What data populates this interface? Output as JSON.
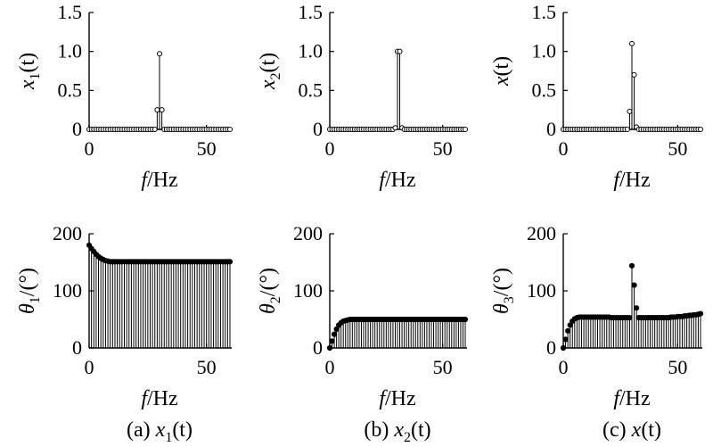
{
  "chart_data": [
    {
      "type": "stem",
      "panel": "top-left",
      "ylabel_main": "x",
      "ylabel_sub": "1",
      "ylabel_tail": "(t)",
      "xlabel_italic": "f",
      "xlabel_rest": "/Hz",
      "xlim": [
        0,
        60
      ],
      "ylim": [
        0,
        1.5
      ],
      "xticks": [
        0,
        50
      ],
      "yticks": [
        0,
        0.5,
        1.0,
        1.5
      ],
      "ytick_labels": [
        "0",
        "0.5",
        "1.0",
        "1.5"
      ],
      "marker": "open",
      "x": [
        0,
        1,
        2,
        3,
        4,
        5,
        6,
        7,
        8,
        9,
        10,
        11,
        12,
        13,
        14,
        15,
        16,
        17,
        18,
        19,
        20,
        21,
        22,
        23,
        24,
        25,
        26,
        27,
        28,
        29,
        30,
        31,
        32,
        33,
        34,
        35,
        36,
        37,
        38,
        39,
        40,
        41,
        42,
        43,
        44,
        45,
        46,
        47,
        48,
        49,
        50,
        51,
        52,
        53,
        54,
        55,
        56,
        57,
        58,
        59,
        60
      ],
      "values": [
        0,
        0,
        0,
        0,
        0,
        0,
        0,
        0,
        0,
        0,
        0,
        0,
        0,
        0,
        0,
        0,
        0,
        0,
        0,
        0,
        0,
        0,
        0,
        0,
        0,
        0,
        0,
        0,
        0,
        0.25,
        0.97,
        0.25,
        0,
        0,
        0,
        0,
        0,
        0,
        0,
        0,
        0,
        0,
        0,
        0,
        0,
        0,
        0,
        0,
        0,
        0,
        0,
        0,
        0,
        0,
        0,
        0,
        0,
        0,
        0,
        0,
        0
      ]
    },
    {
      "type": "stem",
      "panel": "top-middle",
      "ylabel_main": "x",
      "ylabel_sub": "2",
      "ylabel_tail": "(t)",
      "xlabel_italic": "f",
      "xlabel_rest": "/Hz",
      "xlim": [
        0,
        60
      ],
      "ylim": [
        0,
        1.5
      ],
      "xticks": [
        0,
        50
      ],
      "yticks": [
        0,
        0.5,
        1.0,
        1.5
      ],
      "ytick_labels": [
        "0",
        "0.5",
        "1.0",
        "1.5"
      ],
      "marker": "open",
      "x": [
        0,
        1,
        2,
        3,
        4,
        5,
        6,
        7,
        8,
        9,
        10,
        11,
        12,
        13,
        14,
        15,
        16,
        17,
        18,
        19,
        20,
        21,
        22,
        23,
        24,
        25,
        26,
        27,
        28,
        29,
        30,
        31,
        32,
        33,
        34,
        35,
        36,
        37,
        38,
        39,
        40,
        41,
        42,
        43,
        44,
        45,
        46,
        47,
        48,
        49,
        50,
        51,
        52,
        53,
        54,
        55,
        56,
        57,
        58,
        59,
        60
      ],
      "values": [
        0,
        0,
        0,
        0,
        0,
        0,
        0,
        0,
        0,
        0,
        0,
        0,
        0,
        0,
        0,
        0,
        0,
        0,
        0,
        0,
        0,
        0,
        0,
        0,
        0,
        0,
        0,
        0,
        0,
        0.02,
        1.0,
        1.0,
        0.02,
        0,
        0,
        0,
        0,
        0,
        0,
        0,
        0,
        0,
        0,
        0,
        0,
        0,
        0,
        0,
        0,
        0,
        0,
        0,
        0,
        0,
        0,
        0,
        0,
        0,
        0,
        0,
        0
      ]
    },
    {
      "type": "stem",
      "panel": "top-right",
      "ylabel_main": "x",
      "ylabel_sub": "",
      "ylabel_tail": "(t)",
      "xlabel_italic": "f",
      "xlabel_rest": "/Hz",
      "xlim": [
        0,
        60
      ],
      "ylim": [
        0,
        1.5
      ],
      "xticks": [
        0,
        50
      ],
      "yticks": [
        0,
        0.5,
        1.0,
        1.5
      ],
      "ytick_labels": [
        "0",
        "0.5",
        "1.0",
        "1.5"
      ],
      "marker": "open",
      "x": [
        0,
        1,
        2,
        3,
        4,
        5,
        6,
        7,
        8,
        9,
        10,
        11,
        12,
        13,
        14,
        15,
        16,
        17,
        18,
        19,
        20,
        21,
        22,
        23,
        24,
        25,
        26,
        27,
        28,
        29,
        30,
        31,
        32,
        33,
        34,
        35,
        36,
        37,
        38,
        39,
        40,
        41,
        42,
        43,
        44,
        45,
        46,
        47,
        48,
        49,
        50,
        51,
        52,
        53,
        54,
        55,
        56,
        57,
        58,
        59,
        60
      ],
      "values": [
        0,
        0,
        0,
        0,
        0,
        0,
        0,
        0,
        0,
        0,
        0,
        0,
        0,
        0,
        0,
        0,
        0,
        0,
        0,
        0,
        0,
        0,
        0,
        0,
        0,
        0,
        0,
        0,
        0,
        0.23,
        1.1,
        0.7,
        0.03,
        0,
        0,
        0,
        0,
        0,
        0,
        0,
        0,
        0,
        0,
        0,
        0,
        0,
        0,
        0,
        0,
        0,
        0,
        0,
        0,
        0,
        0,
        0,
        0,
        0,
        0,
        0,
        0
      ]
    },
    {
      "type": "stem",
      "panel": "bottom-left",
      "ylabel_main": "θ",
      "ylabel_sub": "1",
      "ylabel_tail": "/(°)",
      "xlabel_italic": "f",
      "xlabel_rest": "/Hz",
      "xlim": [
        0,
        60
      ],
      "ylim": [
        0,
        200
      ],
      "xticks": [
        0,
        50
      ],
      "yticks": [
        0,
        100,
        200
      ],
      "ytick_labels": [
        "0",
        "100",
        "200"
      ],
      "marker": "filled",
      "caption_prefix": "(a) ",
      "caption_main": "x",
      "caption_sub": "1",
      "caption_tail": "(t)",
      "x": [
        0,
        1,
        2,
        3,
        4,
        5,
        6,
        7,
        8,
        9,
        10,
        11,
        12,
        13,
        14,
        15,
        16,
        17,
        18,
        19,
        20,
        21,
        22,
        23,
        24,
        25,
        26,
        27,
        28,
        29,
        30,
        31,
        32,
        33,
        34,
        35,
        36,
        37,
        38,
        39,
        40,
        41,
        42,
        43,
        44,
        45,
        46,
        47,
        48,
        49,
        50,
        51,
        52,
        53,
        54,
        55,
        56,
        57,
        58,
        59,
        60
      ],
      "values": [
        180,
        174,
        169,
        164,
        160,
        157,
        155,
        153,
        152,
        151,
        151,
        151,
        151,
        151,
        151,
        151,
        151,
        151,
        151,
        151,
        151,
        151,
        151,
        151,
        151,
        151,
        151,
        151,
        151,
        151,
        151,
        151,
        151,
        151,
        151,
        151,
        151,
        151,
        151,
        151,
        151,
        151,
        151,
        151,
        151,
        151,
        151,
        151,
        151,
        151,
        151,
        151,
        151,
        151,
        151,
        151,
        151,
        151,
        151,
        151,
        151
      ]
    },
    {
      "type": "stem",
      "panel": "bottom-middle",
      "ylabel_main": "θ",
      "ylabel_sub": "2",
      "ylabel_tail": "/(°)",
      "xlabel_italic": "f",
      "xlabel_rest": "/Hz",
      "xlim": [
        0,
        60
      ],
      "ylim": [
        0,
        200
      ],
      "xticks": [
        0,
        50
      ],
      "yticks": [
        0,
        100,
        200
      ],
      "ytick_labels": [
        "0",
        "100",
        "200"
      ],
      "marker": "filled",
      "caption_prefix": "(b) ",
      "caption_main": "x",
      "caption_sub": "2",
      "caption_tail": "(t)",
      "x": [
        0,
        1,
        2,
        3,
        4,
        5,
        6,
        7,
        8,
        9,
        10,
        11,
        12,
        13,
        14,
        15,
        16,
        17,
        18,
        19,
        20,
        21,
        22,
        23,
        24,
        25,
        26,
        27,
        28,
        29,
        30,
        31,
        32,
        33,
        34,
        35,
        36,
        37,
        38,
        39,
        40,
        41,
        42,
        43,
        44,
        45,
        46,
        47,
        48,
        49,
        50,
        51,
        52,
        53,
        54,
        55,
        56,
        57,
        58,
        59,
        60
      ],
      "values": [
        0,
        12,
        24,
        33,
        40,
        44,
        47,
        48,
        49,
        50,
        50,
        50,
        50,
        50,
        50,
        50,
        50,
        50,
        50,
        50,
        50,
        50,
        50,
        50,
        50,
        50,
        50,
        50,
        50,
        50,
        50,
        50,
        50,
        50,
        50,
        50,
        50,
        50,
        50,
        50,
        50,
        50,
        50,
        50,
        50,
        50,
        50,
        50,
        50,
        50,
        50,
        50,
        50,
        50,
        50,
        50,
        50,
        50,
        50,
        50,
        50
      ]
    },
    {
      "type": "stem",
      "panel": "bottom-right",
      "ylabel_main": "θ",
      "ylabel_sub": "3",
      "ylabel_tail": "/(°)",
      "xlabel_italic": "f",
      "xlabel_rest": "/Hz",
      "xlim": [
        0,
        60
      ],
      "ylim": [
        0,
        200
      ],
      "xticks": [
        0,
        50
      ],
      "yticks": [
        0,
        100,
        200
      ],
      "ytick_labels": [
        "0",
        "100",
        "200"
      ],
      "marker": "filled",
      "caption_prefix": "(c) ",
      "caption_main": "x",
      "caption_sub": "",
      "caption_tail": "(t)",
      "x": [
        0,
        1,
        2,
        3,
        4,
        5,
        6,
        7,
        8,
        9,
        10,
        11,
        12,
        13,
        14,
        15,
        16,
        17,
        18,
        19,
        20,
        21,
        22,
        23,
        24,
        25,
        26,
        27,
        28,
        29,
        30,
        31,
        32,
        33,
        34,
        35,
        36,
        37,
        38,
        39,
        40,
        41,
        42,
        43,
        44,
        45,
        46,
        47,
        48,
        49,
        50,
        51,
        52,
        53,
        54,
        55,
        56,
        57,
        58,
        59,
        60
      ],
      "values": [
        0,
        15,
        30,
        40,
        47,
        51,
        53,
        54,
        54,
        54,
        54,
        54,
        54,
        54,
        54,
        54,
        54,
        54,
        54,
        54,
        54,
        53,
        53,
        53,
        53,
        53,
        53,
        53,
        53,
        53,
        144,
        110,
        70,
        53,
        53,
        53,
        53,
        53,
        53,
        53,
        53,
        53,
        53,
        53,
        53,
        53,
        53,
        54,
        54,
        54,
        55,
        55,
        55,
        56,
        56,
        57,
        57,
        58,
        58,
        59,
        60
      ]
    }
  ]
}
